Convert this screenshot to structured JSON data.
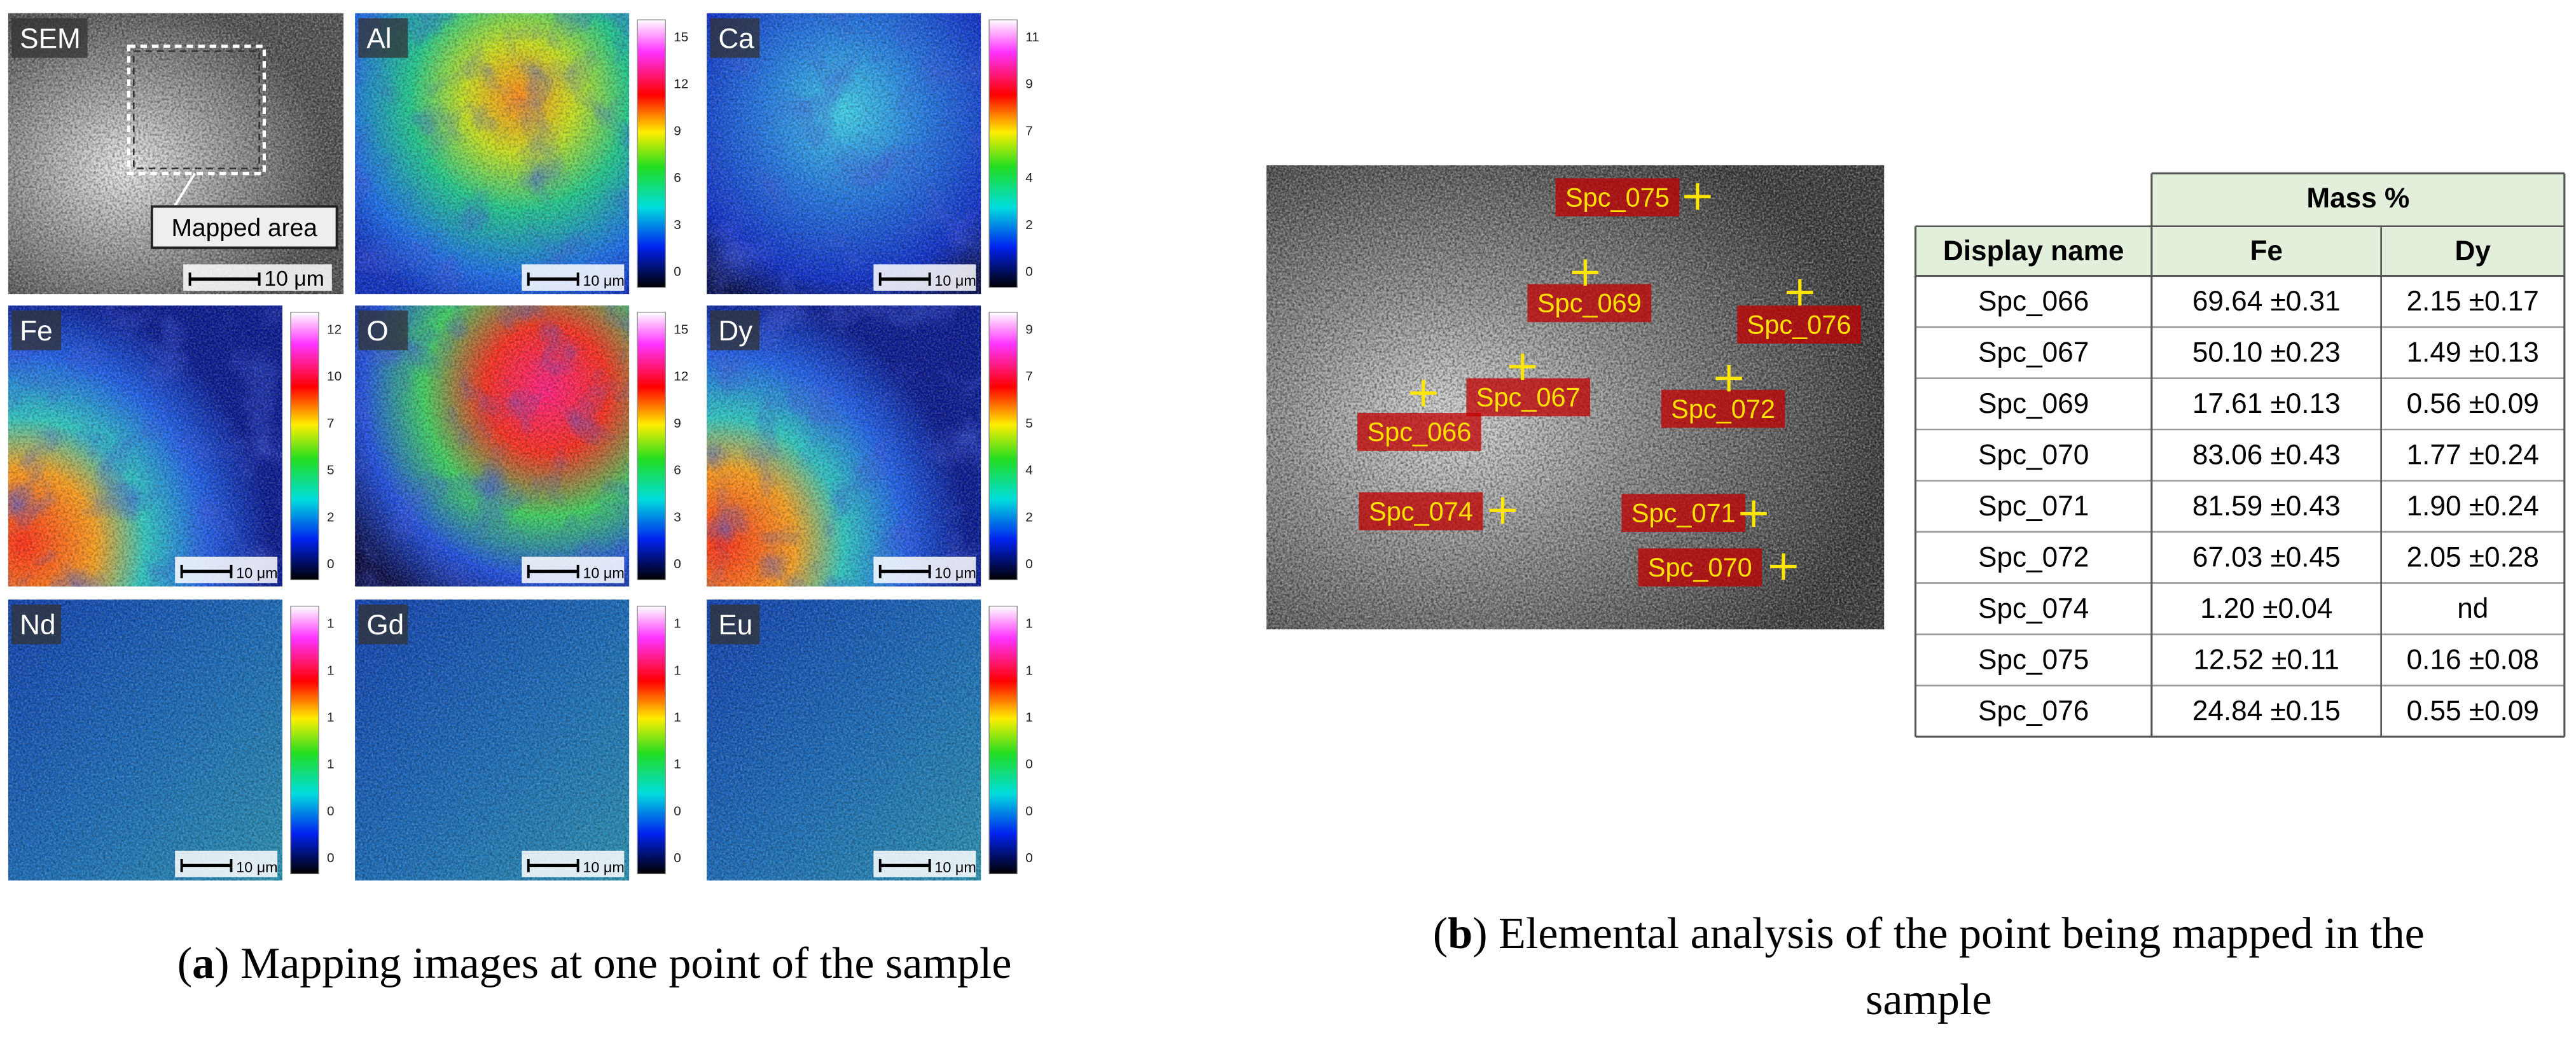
{
  "panel_a": {
    "tiles": [
      {
        "label": "SEM",
        "scale_bar": "10 μm",
        "annotation": "Mapped area"
      },
      {
        "label": "Al",
        "scale_bar": "10 μm",
        "colorbar_ticks": [
          "15",
          "12",
          "9",
          "6",
          "3",
          "0"
        ]
      },
      {
        "label": "Ca",
        "scale_bar": "10 μm",
        "colorbar_ticks": [
          "11",
          "9",
          "7",
          "4",
          "2",
          "0"
        ]
      },
      {
        "label": "Fe",
        "scale_bar": "10 μm",
        "colorbar_ticks": [
          "12",
          "10",
          "7",
          "5",
          "2",
          "0"
        ]
      },
      {
        "label": "O",
        "scale_bar": "10 μm",
        "colorbar_ticks": [
          "15",
          "12",
          "9",
          "6",
          "3",
          "0"
        ]
      },
      {
        "label": "Dy",
        "scale_bar": "10 μm",
        "colorbar_ticks": [
          "9",
          "7",
          "5",
          "4",
          "2",
          "0"
        ]
      },
      {
        "label": "Nd",
        "scale_bar": "10 μm",
        "colorbar_ticks": [
          "1",
          "1",
          "1",
          "1",
          "0",
          "0"
        ]
      },
      {
        "label": "Gd",
        "scale_bar": "10 μm",
        "colorbar_ticks": [
          "1",
          "1",
          "1",
          "1",
          "0",
          "0"
        ]
      },
      {
        "label": "Eu",
        "scale_bar": "10 μm",
        "colorbar_ticks": [
          "1",
          "1",
          "1",
          "0",
          "0",
          "0"
        ]
      }
    ],
    "caption": {
      "lines": [
        [
          "(",
          "a",
          ") Mapping images at one point of the sample"
        ]
      ]
    }
  },
  "panel_b": {
    "points": [
      "Spc_075",
      "Spc_069",
      "Spc_076",
      "Spc_067",
      "Spc_066",
      "Spc_072",
      "Spc_074",
      "Spc_071",
      "Spc_070"
    ],
    "table": {
      "group_header": "Mass %",
      "columns": [
        "Display name",
        "Fe",
        "Dy"
      ],
      "rows": [
        [
          "Spc_066",
          "69.64 ±0.31",
          "2.15 ±0.17"
        ],
        [
          "Spc_067",
          "50.10 ±0.23",
          "1.49 ±0.13"
        ],
        [
          "Spc_069",
          "17.61 ±0.13",
          "0.56 ±0.09"
        ],
        [
          "Spc_070",
          "83.06 ±0.43",
          "1.77 ±0.24"
        ],
        [
          "Spc_071",
          "81.59 ±0.43",
          "1.90 ±0.24"
        ],
        [
          "Spc_072",
          "67.03 ±0.45",
          "2.05 ±0.28"
        ],
        [
          "Spc_074",
          "1.20 ±0.04",
          "nd"
        ],
        [
          "Spc_075",
          "12.52 ±0.11",
          "0.16 ±0.08"
        ],
        [
          "Spc_076",
          "24.84 ±0.15",
          "0.55 ±0.09"
        ]
      ]
    },
    "caption": {
      "lines": [
        [
          "(",
          "b",
          ") Elemental analysis of the point being mapped in the"
        ],
        [
          "sample"
        ]
      ]
    }
  }
}
